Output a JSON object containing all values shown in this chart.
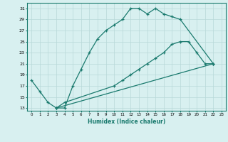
{
  "line1_x": [
    0,
    1,
    2,
    3,
    4,
    5,
    6,
    7,
    8,
    9,
    10,
    11,
    12,
    13,
    14,
    15,
    16,
    17,
    18,
    22
  ],
  "line1_y": [
    18,
    16,
    14,
    13,
    13,
    17,
    20,
    23,
    25.5,
    27,
    28,
    29,
    31,
    31,
    30,
    31,
    30,
    29.5,
    29,
    21
  ],
  "line2_x": [
    3,
    4,
    10,
    11,
    12,
    13,
    14,
    15,
    16,
    17,
    18,
    19,
    20,
    21,
    22
  ],
  "line2_y": [
    13,
    14,
    17,
    18,
    19,
    20,
    21,
    22,
    23,
    24.5,
    25,
    25,
    23,
    21,
    21
  ],
  "line3_x": [
    3,
    22
  ],
  "line3_y": [
    13,
    21
  ],
  "color": "#1a7a6e",
  "bg_color": "#d8f0f0",
  "grid_color": "#b8d8d8",
  "xlabel": "Humidex (Indice chaleur)",
  "xlim": [
    -0.5,
    23.5
  ],
  "ylim": [
    12.5,
    32
  ],
  "yticks": [
    13,
    15,
    17,
    19,
    21,
    23,
    25,
    27,
    29,
    31
  ],
  "xticks": [
    0,
    1,
    2,
    3,
    4,
    5,
    6,
    7,
    8,
    9,
    10,
    11,
    12,
    13,
    14,
    15,
    16,
    17,
    18,
    19,
    20,
    21,
    22,
    23
  ],
  "xtick_labels": [
    "0",
    "1",
    "2",
    "3",
    "4",
    "5",
    "6",
    "7",
    "8",
    "9",
    "10",
    "11",
    "12",
    "13",
    "14",
    "15",
    "16",
    "17",
    "18",
    "19",
    "20",
    "21",
    "22",
    "23"
  ]
}
